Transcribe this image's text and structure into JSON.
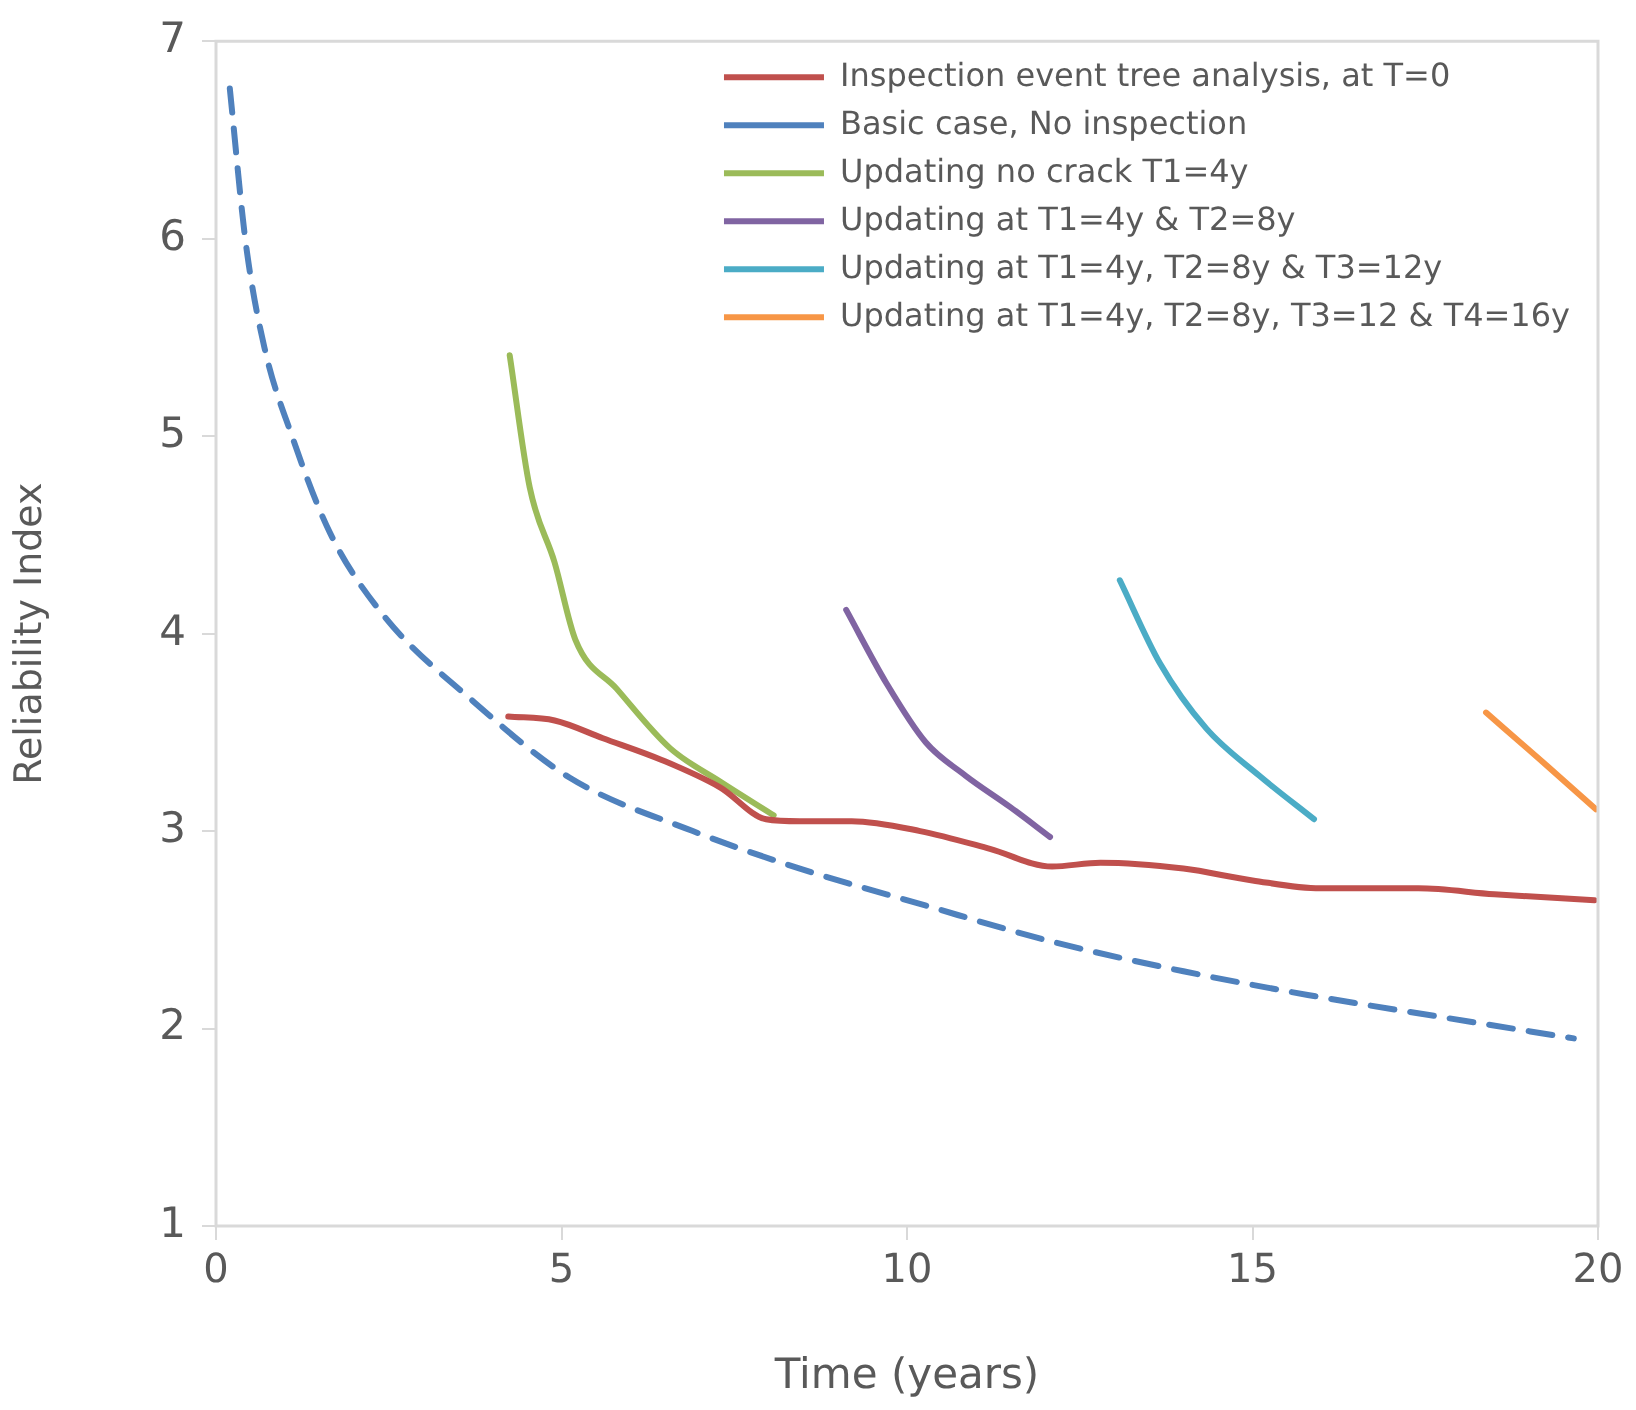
{
  "chart_data": {
    "type": "line",
    "xlabel": "Time (years)",
    "ylabel": "Reliability Index",
    "xlim": [
      0,
      20
    ],
    "xticks": [
      0,
      5,
      10,
      15,
      20
    ],
    "ylim": [
      1,
      7
    ],
    "yticks": [
      1,
      2,
      3,
      4,
      5,
      6,
      7
    ],
    "grid": false,
    "legend": "top right",
    "marker": "none",
    "series": [
      {
        "name": "Inspection event tree analysis, at T=0",
        "color": "#c0504d",
        "line_style": "solid",
        "x": [
          4.23,
          4.9,
          5.6,
          6.45,
          7.3,
          7.96,
          8.45,
          9.2,
          10.19,
          11.2,
          12.1,
          12.8,
          14.0,
          15.0,
          15.98,
          17.4,
          18.5,
          19.95
        ],
        "values": [
          3.58,
          3.56,
          3.47,
          3.36,
          3.22,
          3.06,
          3.05,
          3.05,
          3.0,
          2.91,
          2.82,
          2.84,
          2.81,
          2.75,
          2.71,
          2.71,
          2.68,
          2.65
        ]
      },
      {
        "name": "Basic case, No inspection",
        "color": "#4f81bd",
        "line_style": "dashed",
        "x": [
          0.2,
          0.43,
          0.7,
          1.1,
          1.65,
          2.43,
          3.68,
          5.12,
          6.9,
          8.45,
          10.2,
          12.1,
          14.0,
          15.8,
          17.7,
          19.65
        ],
        "values": [
          6.76,
          5.98,
          5.45,
          5.0,
          4.51,
          4.09,
          3.67,
          3.27,
          3.0,
          2.81,
          2.63,
          2.44,
          2.29,
          2.17,
          2.06,
          1.95
        ]
      },
      {
        "name": "Updating no crack T1=4y",
        "color": "#9bbb59",
        "line_style": "solid",
        "x": [
          4.25,
          4.54,
          4.9,
          5.2,
          5.8,
          6.57,
          7.3,
          8.07
        ],
        "values": [
          5.41,
          4.74,
          4.36,
          3.97,
          3.72,
          3.42,
          3.25,
          3.08
        ]
      },
      {
        "name": "Updating at T1=4y & T2=8y",
        "color": "#8064a2",
        "line_style": "solid",
        "x": [
          9.12,
          9.7,
          10.27,
          10.85,
          11.5,
          12.07
        ],
        "values": [
          4.12,
          3.75,
          3.45,
          3.28,
          3.12,
          2.97
        ]
      },
      {
        "name": "Updating at T1=4y, T2=8y & T3=12y",
        "color": "#4bacc6",
        "line_style": "solid",
        "x": [
          13.08,
          13.66,
          14.33,
          15.1,
          15.89
        ],
        "values": [
          4.27,
          3.85,
          3.52,
          3.28,
          3.06
        ]
      },
      {
        "name": "Updating at T1=4y, T2=8y, T3=12 & T4=16y",
        "color": "#f79646",
        "line_style": "solid",
        "x": [
          18.38,
          19.2,
          19.97
        ],
        "values": [
          3.6,
          3.35,
          3.11
        ]
      }
    ]
  }
}
